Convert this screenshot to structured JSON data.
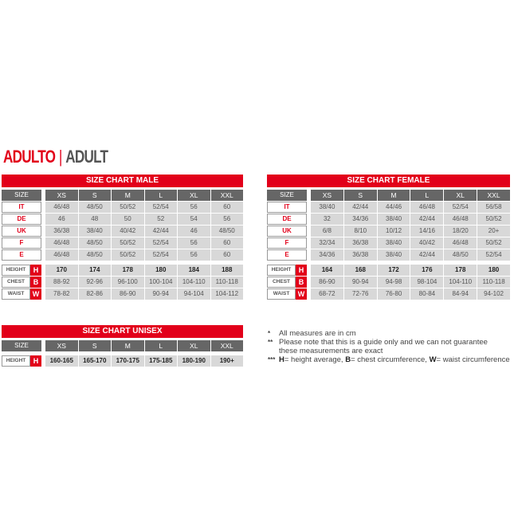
{
  "heading": {
    "red": "ADULTO",
    "separator": "|",
    "gray": "ADULT"
  },
  "charts": [
    {
      "id": "male",
      "title": "SIZE CHART MALE",
      "size_label": "SIZE",
      "sizes": [
        "XS",
        "S",
        "M",
        "L",
        "XL",
        "XXL"
      ],
      "conversions": [
        {
          "label": "IT",
          "values": [
            "46/48",
            "48/50",
            "50/52",
            "52/54",
            "56",
            "60"
          ]
        },
        {
          "label": "DE",
          "values": [
            "46",
            "48",
            "50",
            "52",
            "54",
            "56"
          ]
        },
        {
          "label": "UK",
          "values": [
            "36/38",
            "38/40",
            "40/42",
            "42/44",
            "46",
            "48/50"
          ]
        },
        {
          "label": "F",
          "values": [
            "46/48",
            "48/50",
            "50/52",
            "52/54",
            "56",
            "60"
          ]
        },
        {
          "label": "E",
          "values": [
            "46/48",
            "48/50",
            "50/52",
            "52/54",
            "56",
            "60"
          ]
        }
      ],
      "measures": [
        {
          "label": "HEIGHT",
          "code": "H",
          "values": [
            "170",
            "174",
            "178",
            "180",
            "184",
            "188"
          ]
        },
        {
          "label": "CHEST",
          "code": "B",
          "values": [
            "88-92",
            "92-96",
            "96-100",
            "100-104",
            "104-110",
            "110-118"
          ]
        },
        {
          "label": "WAIST",
          "code": "W",
          "values": [
            "78-82",
            "82-86",
            "86-90",
            "90-94",
            "94-104",
            "104-112"
          ]
        }
      ]
    },
    {
      "id": "female",
      "title": "SIZE CHART FEMALE",
      "size_label": "SIZE",
      "sizes": [
        "XS",
        "S",
        "M",
        "L",
        "XL",
        "XXL"
      ],
      "conversions": [
        {
          "label": "IT",
          "values": [
            "38/40",
            "42/44",
            "44/46",
            "46/48",
            "52/54",
            "56/58"
          ]
        },
        {
          "label": "DE",
          "values": [
            "32",
            "34/36",
            "38/40",
            "42/44",
            "46/48",
            "50/52"
          ]
        },
        {
          "label": "UK",
          "values": [
            "6/8",
            "8/10",
            "10/12",
            "14/16",
            "18/20",
            "20+"
          ]
        },
        {
          "label": "F",
          "values": [
            "32/34",
            "36/38",
            "38/40",
            "40/42",
            "46/48",
            "50/52"
          ]
        },
        {
          "label": "E",
          "values": [
            "34/36",
            "36/38",
            "38/40",
            "42/44",
            "48/50",
            "52/54"
          ]
        }
      ],
      "measures": [
        {
          "label": "HEIGHT",
          "code": "H",
          "values": [
            "164",
            "168",
            "172",
            "176",
            "178",
            "180"
          ]
        },
        {
          "label": "CHEST",
          "code": "B",
          "values": [
            "86-90",
            "90-94",
            "94-98",
            "98-104",
            "104-110",
            "110-118"
          ]
        },
        {
          "label": "WAIST",
          "code": "W",
          "values": [
            "68-72",
            "72-76",
            "76-80",
            "80-84",
            "84-94",
            "94-102"
          ]
        }
      ]
    },
    {
      "id": "unisex",
      "title": "SIZE CHART UNISEX",
      "size_label": "SIZE",
      "sizes": [
        "XS",
        "S",
        "M",
        "L",
        "XL",
        "XXL"
      ],
      "conversions": [],
      "measures": [
        {
          "label": "HEIGHT",
          "code": "H",
          "values": [
            "160-165",
            "165-170",
            "170-175",
            "175-185",
            "180-190",
            "190+"
          ]
        }
      ]
    }
  ],
  "notes": [
    {
      "marker": "*",
      "text": "All measures are in cm"
    },
    {
      "marker": "**",
      "text": "Please note that this is a guide only and we can not guarantee\nthese measurements are exact"
    },
    {
      "marker": "***",
      "parts": [
        {
          "b": "H",
          "t": "= height average, "
        },
        {
          "b": "B",
          "t": "= chest circumference, "
        },
        {
          "b": "W",
          "t": "= waist circumference"
        }
      ]
    }
  ]
}
